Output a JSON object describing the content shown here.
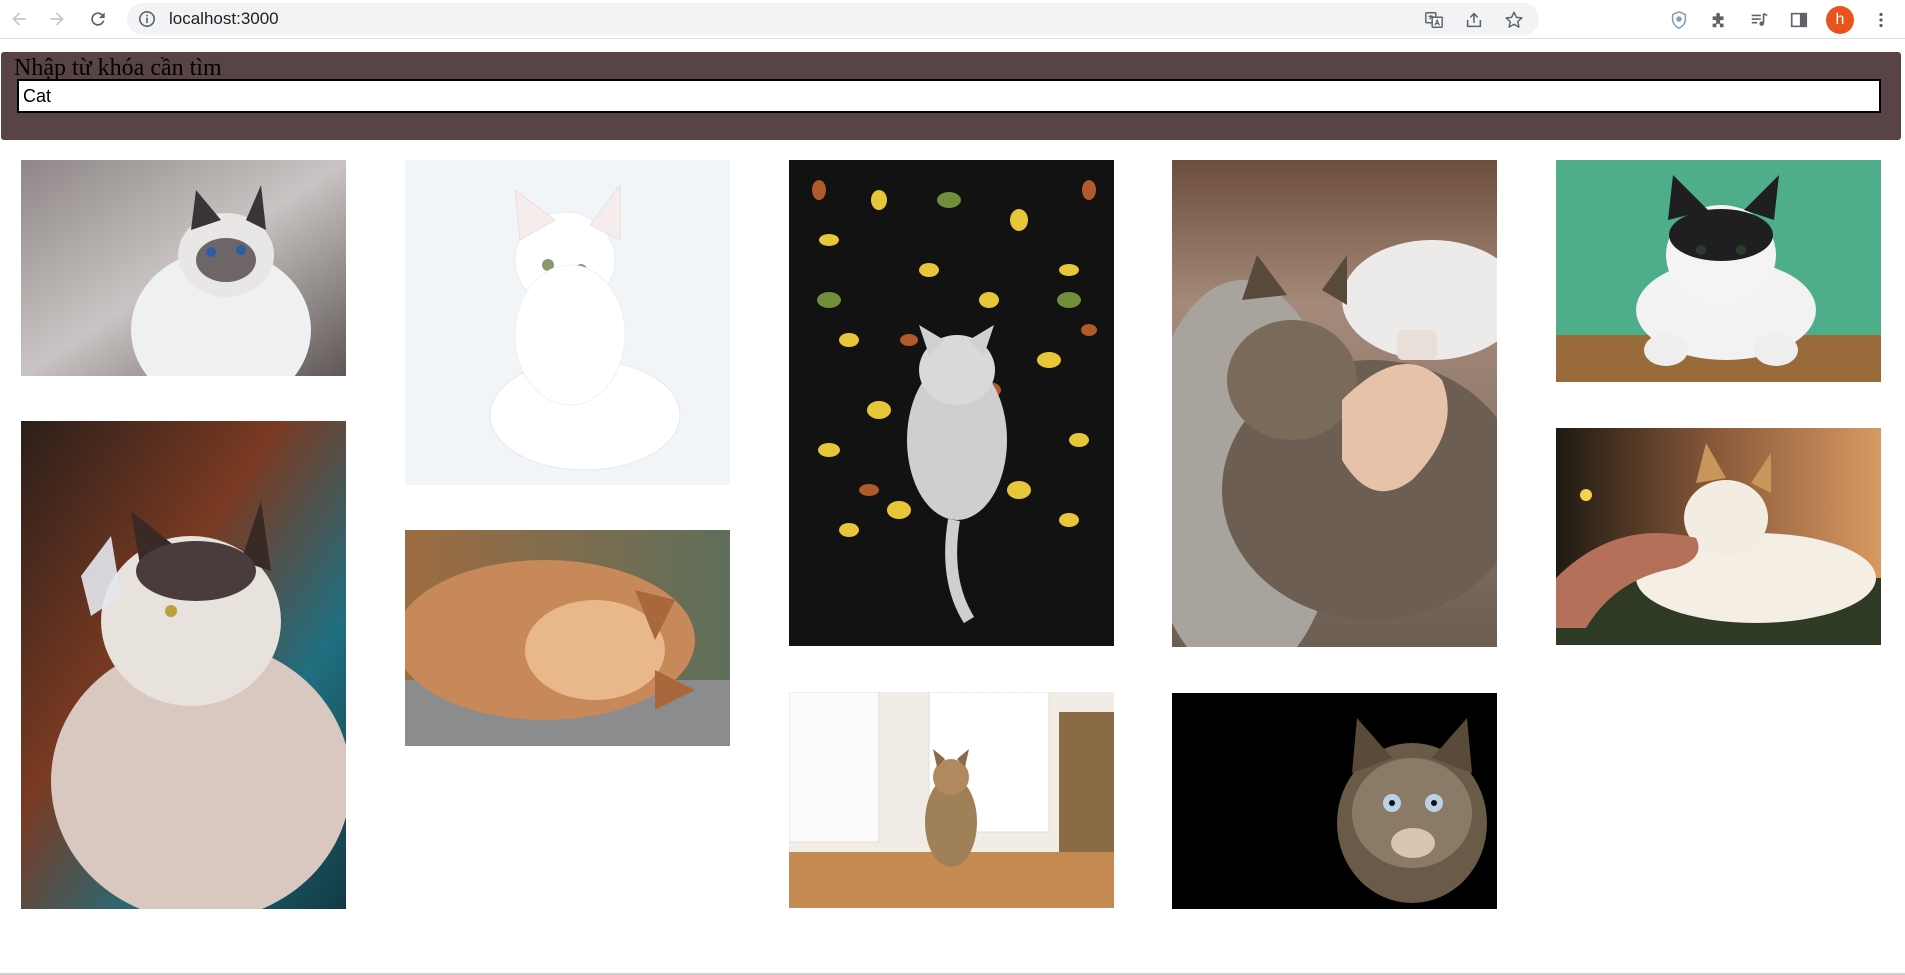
{
  "browser": {
    "url": "localhost:3000",
    "avatar_letter": "h"
  },
  "search": {
    "label": "Nhập từ khóa cần tìm",
    "value": "Cat"
  },
  "gallery": {
    "images": [
      {
        "subject": "siamese cat looking up",
        "colors": [
          "#bdb7b6",
          "#eef0f2",
          "#2b4a7e"
        ]
      },
      {
        "subject": "white cat sitting",
        "colors": [
          "#f2f5f7",
          "#ffffff",
          "#8a9a6a"
        ]
      },
      {
        "subject": "cat lying among autumn leaves",
        "colors": [
          "#121212",
          "#e8c63a",
          "#cfcfcf"
        ]
      },
      {
        "subject": "tabby cat in bed with person",
        "colors": [
          "#6e4e3c",
          "#d9d2cc",
          "#6c5e52"
        ]
      },
      {
        "subject": "black and white cat on green",
        "colors": [
          "#4fae8a",
          "#f2f2f2",
          "#1f1f22"
        ]
      },
      {
        "subject": "cat with butterfly on nose",
        "colors": [
          "#1f5f6e",
          "#e8e2dc",
          "#b85a3a"
        ]
      },
      {
        "subject": "ginger cat sleeping",
        "colors": [
          "#c8895a",
          "#e9b88a",
          "#7a8a7a"
        ]
      },
      {
        "subject": "tabby cat on kitchen table",
        "colors": [
          "#f1ede6",
          "#c48a52",
          "#8b6b46"
        ]
      },
      {
        "subject": "tabby cat on black background",
        "colors": [
          "#000000",
          "#8a7a66",
          "#bcd0e6"
        ]
      },
      {
        "subject": "cat being petted by hand",
        "colors": [
          "#2a2216",
          "#f4eee4",
          "#b5705a"
        ]
      }
    ]
  }
}
